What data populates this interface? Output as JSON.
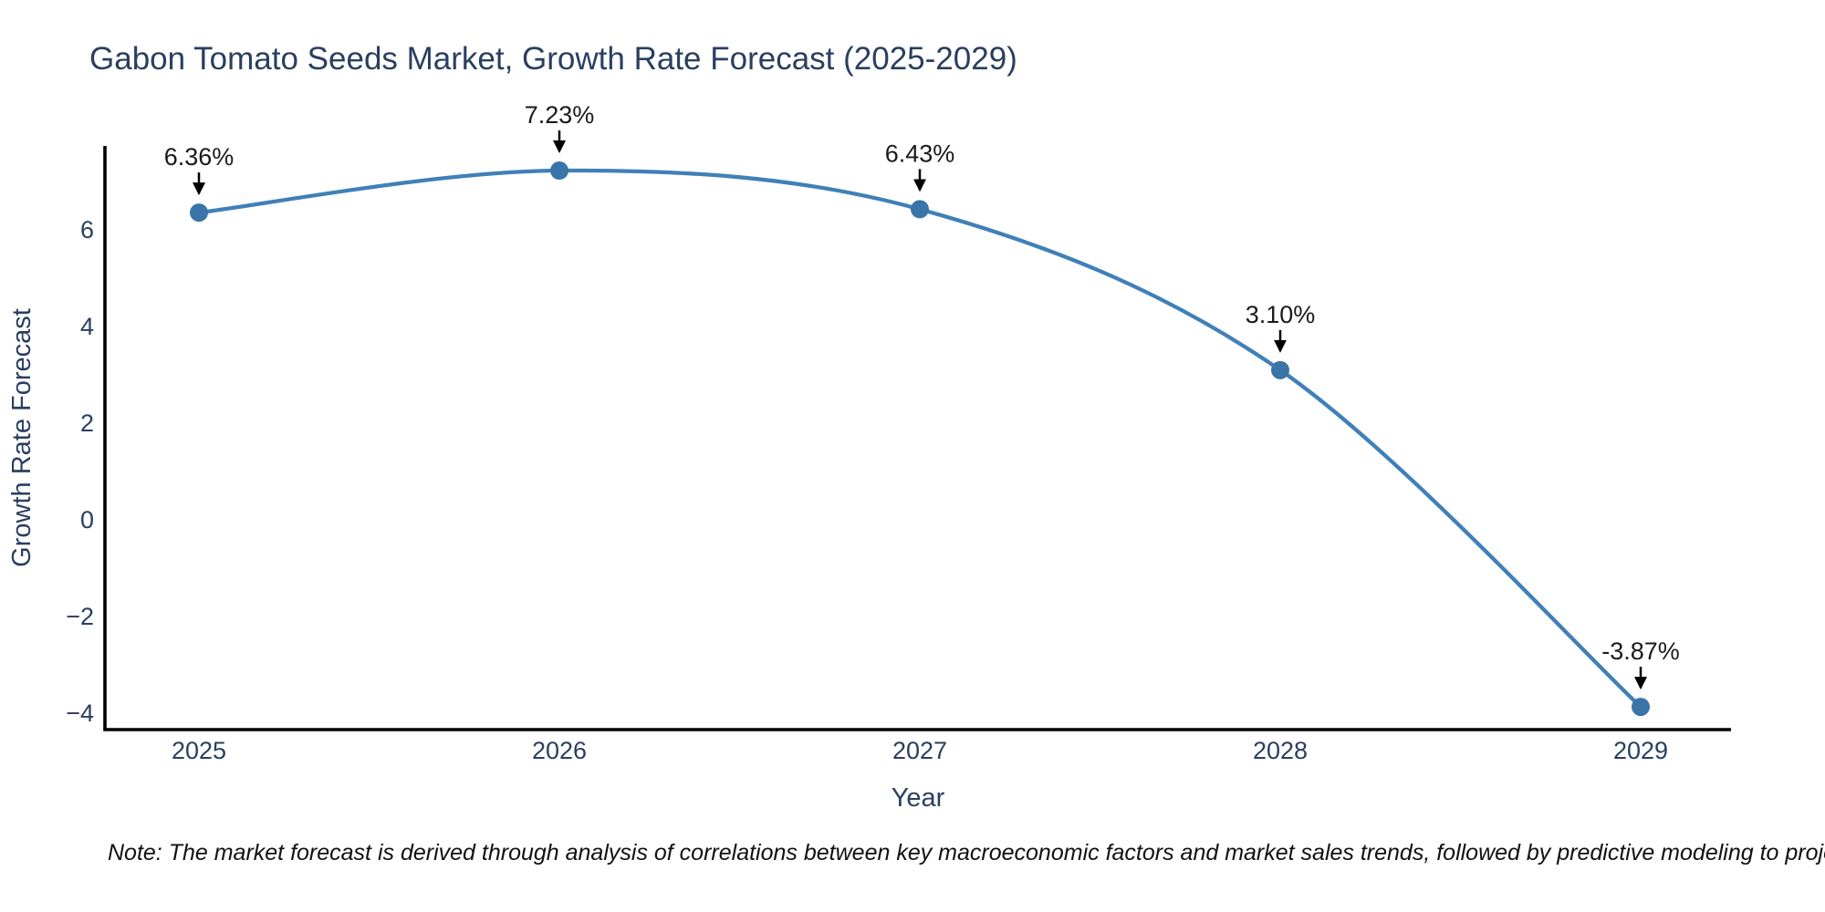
{
  "note": "Note: The market forecast is derived through analysis of correlations between key macroeconomic factors and market sales trends, followed by predictive modeling to project future sales",
  "chart_data": {
    "type": "line",
    "title": "Gabon Tomato Seeds Market, Growth Rate Forecast (2025-2029)",
    "xlabel": "Year",
    "ylabel": "Growth Rate Forecast",
    "line_shape": "spline",
    "grid": false,
    "legend": "none",
    "x": [
      "2025",
      "2026",
      "2027",
      "2028",
      "2029"
    ],
    "series": [
      {
        "name": "Growth Rate Forecast",
        "values": [
          6.36,
          7.23,
          6.43,
          3.1,
          -3.87
        ]
      }
    ],
    "point_labels": [
      "6.36%",
      "7.23%",
      "6.43%",
      "3.10%",
      "-3.87%"
    ],
    "ytick_values": [
      6,
      4,
      2,
      0,
      -2,
      -4
    ],
    "ytick_labels": [
      "6",
      "4",
      "2",
      "0",
      "−2",
      "−4"
    ],
    "ylim": [
      -4.34,
      7.74
    ],
    "colors": {
      "line": "#4080b8",
      "marker": "#3a74a8",
      "axis": "#000000",
      "text": "#2a3f5f",
      "annotation_text": "#1a1a1a",
      "arrow": "#000000",
      "note": "#111111",
      "background": "#ffffff"
    }
  }
}
